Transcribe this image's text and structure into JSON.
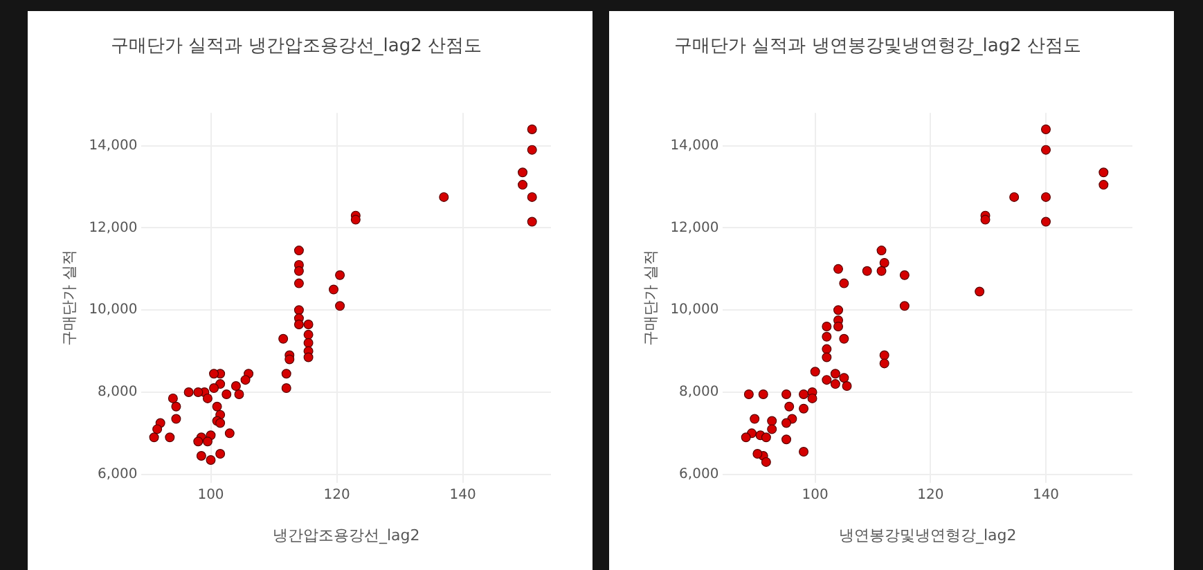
{
  "chart_data": [
    {
      "type": "scatter",
      "title": "구매단가 실적과 냉간압조용강선_lag2 산점도",
      "xlabel": "냉간압조용강선_lag2",
      "ylabel": "구매단가 실적",
      "marker": "circle",
      "grid": true,
      "legend": false,
      "xlim": [
        89,
        154
      ],
      "xticks": [
        100,
        120,
        140
      ],
      "ylim": [
        5800,
        14800
      ],
      "yticks": [
        {
          "value": 6000,
          "label": "6,000"
        },
        {
          "value": 8000,
          "label": "8,000"
        },
        {
          "value": 10000,
          "label": "10,000"
        },
        {
          "value": 12000,
          "label": "12,000"
        },
        {
          "value": 14000,
          "label": "14,000"
        }
      ],
      "series": [
        {
          "color": "#d40000",
          "x": [
            151,
            151,
            149.5,
            149.5,
            151,
            151,
            137,
            123,
            123,
            120.5,
            119.5,
            120.5,
            114,
            114,
            114,
            114,
            114,
            114,
            114,
            115.5,
            115.5,
            115.5,
            115.5,
            115.5,
            111.5,
            112.5,
            112.5,
            112,
            112,
            106,
            105.5,
            104,
            104.5,
            101.5,
            100.5,
            101.5,
            100.5,
            99,
            98,
            96.5,
            94,
            94.5,
            94.5,
            101,
            101.5,
            101,
            101.5,
            100,
            103,
            98.5,
            99.5,
            92,
            91.5,
            91,
            93.5,
            98.5,
            100,
            101.5,
            98,
            102.5,
            99.5
          ],
          "values": [
            14400,
            13900,
            13350,
            13050,
            12750,
            12150,
            12750,
            12300,
            12200,
            10850,
            10500,
            10100,
            11450,
            11100,
            10950,
            10650,
            10000,
            9800,
            9650,
            9650,
            9400,
            9200,
            9000,
            8850,
            9300,
            8900,
            8800,
            8450,
            8100,
            8450,
            8300,
            8150,
            7950,
            8450,
            8450,
            8200,
            8100,
            8000,
            8000,
            8000,
            7850,
            7650,
            7350,
            7650,
            7450,
            7300,
            7250,
            6950,
            7000,
            6900,
            6800,
            7250,
            7100,
            6900,
            6900,
            6450,
            6350,
            6500,
            6800,
            7950,
            7850
          ]
        }
      ]
    },
    {
      "type": "scatter",
      "title": "구매단가 실적과 냉연봉강및냉연형강_lag2 산점도",
      "xlabel": "냉연봉강및냉연형강_lag2",
      "ylabel": "구매단가 실적",
      "marker": "circle",
      "grid": true,
      "legend": false,
      "xlim": [
        84,
        155
      ],
      "xticks": [
        100,
        120,
        140
      ],
      "ylim": [
        5800,
        14800
      ],
      "yticks": [
        {
          "value": 6000,
          "label": "6,000"
        },
        {
          "value": 8000,
          "label": "8,000"
        },
        {
          "value": 10000,
          "label": "10,000"
        },
        {
          "value": 12000,
          "label": "12,000"
        },
        {
          "value": 14000,
          "label": "14,000"
        }
      ],
      "series": [
        {
          "color": "#d40000",
          "x": [
            140,
            140,
            140,
            140,
            150,
            150,
            134.5,
            129.5,
            129.5,
            128.5,
            115.5,
            115.5,
            111.5,
            112,
            111.5,
            109,
            104,
            105,
            105,
            112,
            112,
            104,
            104,
            104,
            102,
            102,
            102,
            102,
            100,
            102,
            103.5,
            105,
            105.5,
            103.5,
            99.5,
            98,
            99.5,
            95,
            95.5,
            96,
            95,
            98,
            95,
            98,
            88.5,
            91,
            89.5,
            89,
            88,
            90.5,
            92.5,
            92.5,
            91.5,
            91,
            91.5,
            90
          ],
          "values": [
            14400,
            13900,
            12750,
            12150,
            13350,
            13050,
            12750,
            12300,
            12200,
            10450,
            10850,
            10100,
            11450,
            11150,
            10950,
            10950,
            11000,
            10650,
            9300,
            8900,
            8700,
            10000,
            9750,
            9600,
            9600,
            9350,
            9050,
            8850,
            8500,
            8300,
            8200,
            8350,
            8150,
            8450,
            8000,
            7950,
            7850,
            7950,
            7650,
            7350,
            7250,
            7600,
            6850,
            6550,
            7950,
            7950,
            7350,
            7000,
            6900,
            6950,
            7300,
            7100,
            6900,
            6450,
            6300,
            6500
          ]
        }
      ]
    }
  ]
}
